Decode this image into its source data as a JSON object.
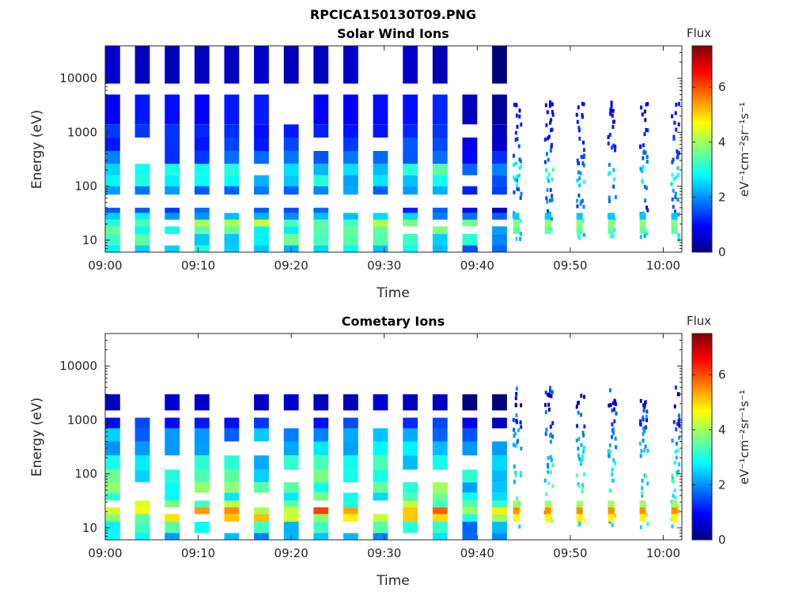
{
  "figure_title": "RPCICA150130T09.PNG",
  "colorbar_label": "eV⁻¹cm⁻²sr⁻¹s⁻¹",
  "colormap": [
    "#00007f",
    "#0000ff",
    "#007fff",
    "#00ffff",
    "#7fff7f",
    "#ffff00",
    "#ff7f00",
    "#ff0000",
    "#7f0000"
  ],
  "chart_data": [
    {
      "type": "heatmap",
      "title": "Solar Wind Ions",
      "xlabel": "Time",
      "ylabel": "Energy (eV)",
      "x_ticks": [
        "09:00",
        "09:10",
        "09:20",
        "09:30",
        "09:40",
        "09:50",
        "10:00"
      ],
      "y_ticks": [
        "10",
        "100",
        "1000",
        "10000"
      ],
      "yscale": "log",
      "ylim": [
        6,
        40000
      ],
      "xlim_minutes": [
        0,
        62
      ],
      "colorbar": {
        "title": "Flux",
        "ticks": [
          "0",
          "2",
          "4",
          "6"
        ],
        "range": [
          0,
          7.5
        ]
      },
      "scans_start_min": [
        0,
        3.2,
        6.4,
        9.6,
        12.8,
        16.0,
        19.2,
        22.4,
        25.6,
        28.8,
        32.0,
        35.2,
        38.4,
        41.6
      ],
      "scan_width_min": 1.6,
      "bursts_min": [
        44.2,
        47.6,
        51.0,
        54.4,
        57.8,
        61.2
      ],
      "energy_bands": [
        {
          "e_low": 6,
          "e_high": 8,
          "flux": 2.5
        },
        {
          "e_low": 8,
          "e_high": 13,
          "flux": 3.0
        },
        {
          "e_low": 13,
          "e_high": 18,
          "flux": 3.2
        },
        {
          "e_low": 18,
          "e_high": 24,
          "flux": 3.5
        },
        {
          "e_low": 24,
          "e_high": 32,
          "flux": 2.2
        },
        {
          "e_low": 32,
          "e_high": 40,
          "flux": 1.4
        },
        {
          "e_low": 70,
          "e_high": 100,
          "flux": 1.8
        },
        {
          "e_low": 100,
          "e_high": 160,
          "flux": 2.6
        },
        {
          "e_low": 160,
          "e_high": 260,
          "flux": 2.8
        },
        {
          "e_low": 260,
          "e_high": 450,
          "flux": 1.6
        },
        {
          "e_low": 450,
          "e_high": 800,
          "flux": 1.3
        },
        {
          "e_low": 800,
          "e_high": 1400,
          "flux": 1.2
        },
        {
          "e_low": 1400,
          "e_high": 5000,
          "flux": 1.0
        },
        {
          "e_low": 8000,
          "e_high": 40000,
          "flux": 0.5
        }
      ]
    },
    {
      "type": "heatmap",
      "title": "Cometary Ions",
      "xlabel": "Time",
      "ylabel": "Energy (eV)",
      "x_ticks": [
        "09:00",
        "09:10",
        "09:20",
        "09:30",
        "09:40",
        "09:50",
        "10:00"
      ],
      "y_ticks": [
        "10",
        "100",
        "1000",
        "10000"
      ],
      "yscale": "log",
      "ylim": [
        6,
        40000
      ],
      "xlim_minutes": [
        0,
        62
      ],
      "colorbar": {
        "title": "Flux",
        "ticks": [
          "0",
          "2",
          "4",
          "6"
        ],
        "range": [
          0,
          7.5
        ]
      },
      "scans_start_min": [
        0,
        3.2,
        6.4,
        9.6,
        12.8,
        16.0,
        19.2,
        22.4,
        25.6,
        28.8,
        32.0,
        35.2,
        38.4,
        41.6
      ],
      "scan_width_min": 1.6,
      "bursts_min": [
        44.2,
        47.6,
        51.0,
        54.4,
        57.8,
        61.2
      ],
      "energy_bands": [
        {
          "e_low": 6,
          "e_high": 8,
          "flux": 2.3
        },
        {
          "e_low": 8,
          "e_high": 13,
          "flux": 2.8
        },
        {
          "e_low": 13,
          "e_high": 18,
          "flux": 4.3
        },
        {
          "e_low": 18,
          "e_high": 24,
          "flux": 5.0
        },
        {
          "e_low": 24,
          "e_high": 32,
          "flux": 3.6
        },
        {
          "e_low": 32,
          "e_high": 45,
          "flux": 3.0
        },
        {
          "e_low": 45,
          "e_high": 70,
          "flux": 3.2
        },
        {
          "e_low": 70,
          "e_high": 120,
          "flux": 3.0
        },
        {
          "e_low": 120,
          "e_high": 220,
          "flux": 2.7
        },
        {
          "e_low": 220,
          "e_high": 400,
          "flux": 2.4
        },
        {
          "e_low": 400,
          "e_high": 700,
          "flux": 2.0
        },
        {
          "e_low": 700,
          "e_high": 1100,
          "flux": 1.2
        },
        {
          "e_low": 1500,
          "e_high": 3000,
          "flux": 0.5
        }
      ]
    }
  ]
}
